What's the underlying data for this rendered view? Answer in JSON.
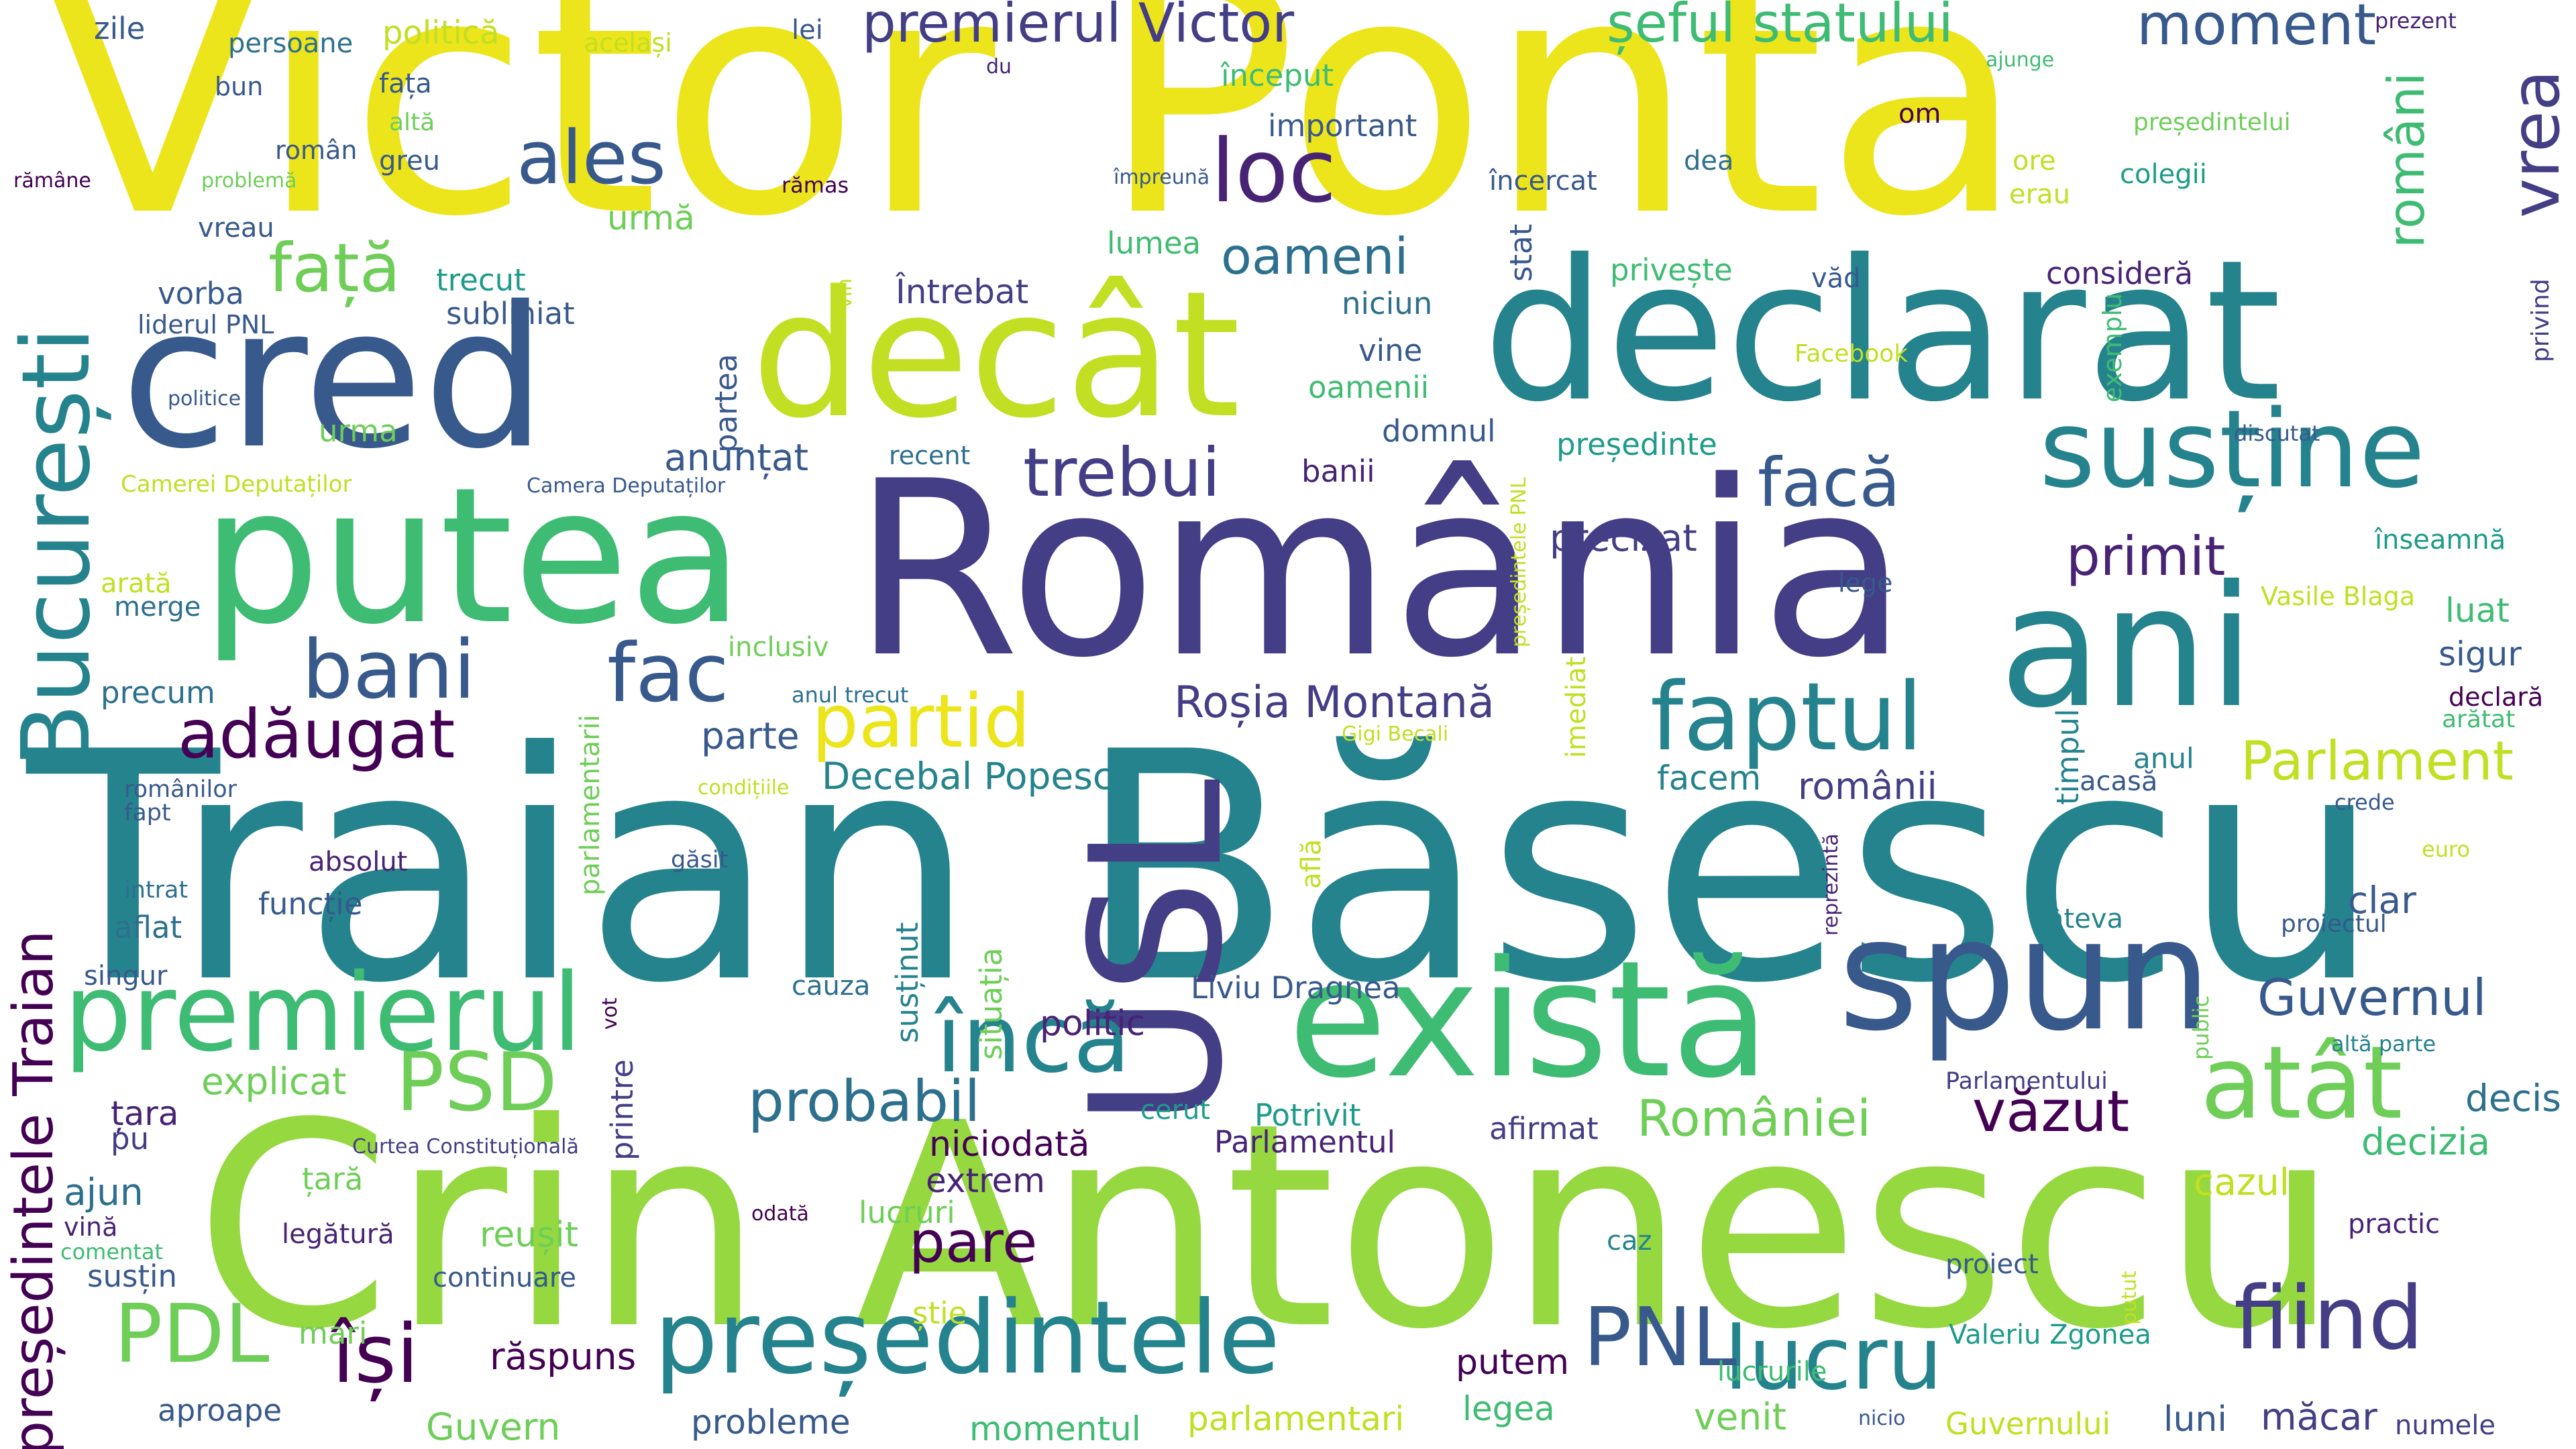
{
  "palette": {
    "yellow": "#ede51b",
    "lime": "#95d840",
    "lightgreen": "#6ece58",
    "green": "#3fbc73",
    "teal": "#1e9b8a",
    "tealblue": "#25838e",
    "blue": "#2d708e",
    "indigo": "#38598c",
    "violet": "#433e85",
    "purple": "#482374",
    "dark": "#440154",
    "chartreuse": "#c2df23"
  },
  "words": [
    {
      "id": "victor-ponta",
      "text": "Victor Ponta",
      "color": "yellow"
    },
    {
      "id": "traian-basescu",
      "text": "Traian Băsescu",
      "color": "tealblue"
    },
    {
      "id": "crin-antonescu",
      "text": "Crin Antonescu",
      "color": "lime"
    },
    {
      "id": "romania",
      "text": "România",
      "color": "violet"
    },
    {
      "id": "putea",
      "text": "putea",
      "color": "green"
    },
    {
      "id": "declarat",
      "text": "declarat",
      "color": "tealblue"
    },
    {
      "id": "cred",
      "text": "cred",
      "color": "indigo"
    },
    {
      "id": "decat",
      "text": "decât",
      "color": "chartreuse"
    },
    {
      "id": "ani",
      "text": "ani",
      "color": "tealblue"
    },
    {
      "id": "usl",
      "text": "USL",
      "color": "violet"
    },
    {
      "id": "exista",
      "text": "există",
      "color": "green"
    },
    {
      "id": "spun",
      "text": "spun",
      "color": "indigo"
    },
    {
      "id": "presedintele",
      "text": "președintele",
      "color": "tealblue"
    },
    {
      "id": "sustine",
      "text": "susține",
      "color": "tealblue"
    },
    {
      "id": "premierul",
      "text": "premierul",
      "color": "green"
    },
    {
      "id": "bucuresti",
      "text": "București",
      "color": "tealblue"
    },
    {
      "id": "presedintele-traian",
      "text": "președintele Traian",
      "color": "dark"
    },
    {
      "id": "faptul",
      "text": "faptul",
      "color": "tealblue"
    },
    {
      "id": "fiind",
      "text": "fiind",
      "color": "violet"
    },
    {
      "id": "lucru",
      "text": "lucru",
      "color": "tealblue"
    },
    {
      "id": "atat",
      "text": "atât",
      "color": "lightgreen"
    },
    {
      "id": "inca",
      "text": "încă",
      "color": "tealblue"
    },
    {
      "id": "psd",
      "text": "PSD",
      "color": "lightgreen"
    },
    {
      "id": "pdl",
      "text": "PDL",
      "color": "lightgreen"
    },
    {
      "id": "pnl",
      "text": "PNL",
      "color": "indigo"
    },
    {
      "id": "isi",
      "text": "își",
      "color": "dark"
    },
    {
      "id": "partid",
      "text": "partid",
      "color": "yellow"
    },
    {
      "id": "bani",
      "text": "bani",
      "color": "indigo"
    },
    {
      "id": "fac",
      "text": "fac",
      "color": "indigo"
    },
    {
      "id": "face",
      "text": "facă",
      "color": "indigo"
    },
    {
      "id": "trebui",
      "text": "trebui",
      "color": "violet"
    },
    {
      "id": "loc",
      "text": "loc",
      "color": "purple"
    },
    {
      "id": "ales",
      "text": "ales",
      "color": "indigo"
    },
    {
      "id": "fata",
      "text": "față",
      "color": "lightgreen"
    },
    {
      "id": "adaugat",
      "text": "adăugat",
      "color": "dark"
    },
    {
      "id": "vrea",
      "text": "vrea",
      "color": "violet"
    },
    {
      "id": "premierul-victor",
      "text": "premierul Victor",
      "color": "violet"
    },
    {
      "id": "seful-statului",
      "text": "șeful statului",
      "color": "green"
    },
    {
      "id": "moment",
      "text": "moment",
      "color": "indigo"
    },
    {
      "id": "oameni",
      "text": "oameni",
      "color": "blue"
    },
    {
      "id": "primit",
      "text": "primit",
      "color": "purple"
    },
    {
      "id": "parlament",
      "text": "Parlament",
      "color": "chartreuse"
    },
    {
      "id": "guvernul",
      "text": "Guvernul",
      "color": "indigo"
    },
    {
      "id": "rosia-montana",
      "text": "Roșia Montană",
      "color": "violet"
    },
    {
      "id": "probabil",
      "text": "probabil",
      "color": "blue"
    },
    {
      "id": "pare",
      "text": "pare",
      "color": "dark"
    },
    {
      "id": "vazut",
      "text": "văzut",
      "color": "dark"
    },
    {
      "id": "romaniei",
      "text": "României",
      "color": "lightgreen"
    },
    {
      "id": "romani-v",
      "text": "români",
      "color": "green"
    },
    {
      "id": "decebal-popescu",
      "text": "Decebal Popescu",
      "color": "tealblue"
    },
    {
      "id": "raspuns",
      "text": "răspuns",
      "color": "dark"
    },
    {
      "id": "precizat",
      "text": "precizat",
      "color": "violet"
    },
    {
      "id": "explicat",
      "text": "explicat",
      "color": "lightgreen"
    },
    {
      "id": "romanii",
      "text": "românii",
      "color": "violet"
    },
    {
      "id": "sigur",
      "text": "sigur",
      "color": "indigo"
    },
    {
      "id": "luat",
      "text": "luat",
      "color": "green"
    },
    {
      "id": "cazul",
      "text": "cazul",
      "color": "chartreuse"
    },
    {
      "id": "decizia",
      "text": "decizia",
      "color": "green"
    },
    {
      "id": "decis",
      "text": "decis",
      "color": "blue"
    },
    {
      "id": "clar",
      "text": "clar",
      "color": "indigo"
    },
    {
      "id": "anuntat",
      "text": "anunțat",
      "color": "indigo"
    },
    {
      "id": "parte",
      "text": "parte",
      "color": "indigo"
    },
    {
      "id": "facem",
      "text": "facem",
      "color": "tealblue"
    },
    {
      "id": "anul",
      "text": "anul",
      "color": "tealblue"
    },
    {
      "id": "politic",
      "text": "politic",
      "color": "purple"
    },
    {
      "id": "niciodata",
      "text": "niciodată",
      "color": "dark"
    },
    {
      "id": "extrem",
      "text": "extrem",
      "color": "purple"
    },
    {
      "id": "lucruri",
      "text": "lucruri",
      "color": "lightgreen"
    },
    {
      "id": "reusit",
      "text": "reușit",
      "color": "lightgreen"
    },
    {
      "id": "putem",
      "text": "putem",
      "color": "dark"
    },
    {
      "id": "legea",
      "text": "legea",
      "color": "green"
    },
    {
      "id": "venit",
      "text": "venit",
      "color": "lightgreen"
    },
    {
      "id": "luni",
      "text": "luni",
      "color": "indigo"
    },
    {
      "id": "macar",
      "text": "măcar",
      "color": "violet"
    },
    {
      "id": "probleme",
      "text": "probleme",
      "color": "indigo"
    },
    {
      "id": "momentul",
      "text": "momentul",
      "color": "green"
    },
    {
      "id": "parlamentari",
      "text": "parlamentari",
      "color": "chartreuse"
    },
    {
      "id": "guvern",
      "text": "Guvern",
      "color": "lightgreen"
    },
    {
      "id": "guvernului",
      "text": "Guvernului",
      "color": "chartreuse"
    },
    {
      "id": "mari",
      "text": "mari",
      "color": "lightgreen"
    },
    {
      "id": "aproape",
      "text": "aproape",
      "color": "indigo"
    },
    {
      "id": "zile",
      "text": "zile",
      "color": "indigo"
    },
    {
      "id": "persoane",
      "text": "persoane",
      "color": "blue"
    },
    {
      "id": "politica",
      "text": "politică",
      "color": "chartreuse"
    },
    {
      "id": "acelasi",
      "text": "același",
      "color": "chartreuse"
    },
    {
      "id": "lei",
      "text": "lei",
      "color": "indigo"
    },
    {
      "id": "bun",
      "text": "bun",
      "color": "indigo"
    },
    {
      "id": "roman",
      "text": "român",
      "color": "indigo"
    },
    {
      "id": "fata-small",
      "text": "fața",
      "color": "indigo"
    },
    {
      "id": "alta",
      "text": "altă",
      "color": "lightgreen"
    },
    {
      "id": "du",
      "text": "du",
      "color": "purple"
    },
    {
      "id": "inceput",
      "text": "început",
      "color": "green"
    },
    {
      "id": "important",
      "text": "important",
      "color": "indigo"
    },
    {
      "id": "om",
      "text": "om",
      "color": "dark"
    },
    {
      "id": "prezent",
      "text": "prezent",
      "color": "purple"
    },
    {
      "id": "ajunge",
      "text": "ajunge",
      "color": "green"
    },
    {
      "id": "presedintelui",
      "text": "președintelui",
      "color": "lightgreen"
    },
    {
      "id": "ramane",
      "text": "rămâne",
      "color": "dark"
    },
    {
      "id": "problema",
      "text": "problemă",
      "color": "lightgreen"
    },
    {
      "id": "greu",
      "text": "greu",
      "color": "indigo"
    },
    {
      "id": "impreuna",
      "text": "împreună",
      "color": "indigo"
    },
    {
      "id": "ramas",
      "text": "rămas",
      "color": "dark"
    },
    {
      "id": "incercat",
      "text": "încercat",
      "color": "indigo"
    },
    {
      "id": "dea",
      "text": "dea",
      "color": "blue"
    },
    {
      "id": "ore",
      "text": "ore",
      "color": "chartreuse"
    },
    {
      "id": "erau",
      "text": "erau",
      "color": "chartreuse"
    },
    {
      "id": "colegii",
      "text": "colegii",
      "color": "teal"
    },
    {
      "id": "urma-big",
      "text": "urmă",
      "color": "lightgreen"
    },
    {
      "id": "vreau",
      "text": "vreau",
      "color": "indigo"
    },
    {
      "id": "lumea",
      "text": "lumea",
      "color": "green"
    },
    {
      "id": "trecut",
      "text": "trecut",
      "color": "teal"
    },
    {
      "id": "vorba",
      "text": "vorba",
      "color": "indigo"
    },
    {
      "id": "liderul-pnl",
      "text": "liderul PNL",
      "color": "indigo"
    },
    {
      "id": "subliniat",
      "text": "subliniat",
      "color": "indigo"
    },
    {
      "id": "intrebat",
      "text": "Întrebat",
      "color": "violet"
    },
    {
      "id": "priveste",
      "text": "privește",
      "color": "green"
    },
    {
      "id": "vad",
      "text": "văd",
      "color": "indigo"
    },
    {
      "id": "considera",
      "text": "consideră",
      "color": "purple"
    },
    {
      "id": "niciun",
      "text": "niciun",
      "color": "blue"
    },
    {
      "id": "vine",
      "text": "vine",
      "color": "indigo"
    },
    {
      "id": "oamenii",
      "text": "oamenii",
      "color": "green"
    },
    {
      "id": "facebook",
      "text": "Facebook",
      "color": "chartreuse"
    },
    {
      "id": "domnul",
      "text": "domnul",
      "color": "indigo"
    },
    {
      "id": "presedinte",
      "text": "președinte",
      "color": "teal"
    },
    {
      "id": "politice",
      "text": "politice",
      "color": "indigo"
    },
    {
      "id": "urma",
      "text": "urma",
      "color": "lightgreen"
    },
    {
      "id": "camerei-deputatilor",
      "text": "Camerei Deputaților",
      "color": "chartreuse"
    },
    {
      "id": "camera-deputatilor",
      "text": "Camera Deputaților",
      "color": "indigo"
    },
    {
      "id": "recent",
      "text": "recent",
      "color": "blue"
    },
    {
      "id": "banii",
      "text": "banii",
      "color": "purple"
    },
    {
      "id": "discutat",
      "text": "discutat",
      "color": "indigo"
    },
    {
      "id": "inseamna",
      "text": "înseamnă",
      "color": "teal"
    },
    {
      "id": "arata",
      "text": "arată",
      "color": "chartreuse"
    },
    {
      "id": "merge",
      "text": "merge",
      "color": "blue"
    },
    {
      "id": "lege",
      "text": "lege",
      "color": "indigo"
    },
    {
      "id": "vasile-blaga",
      "text": "Vasile Blaga",
      "color": "chartreuse"
    },
    {
      "id": "inclusiv",
      "text": "inclusiv",
      "color": "lightgreen"
    },
    {
      "id": "precum",
      "text": "precum",
      "color": "blue"
    },
    {
      "id": "anul-trecut",
      "text": "anul trecut",
      "color": "blue"
    },
    {
      "id": "gigi-becali",
      "text": "Gigi Becali",
      "color": "chartreuse"
    },
    {
      "id": "declara",
      "text": "declară",
      "color": "dark"
    },
    {
      "id": "aratat",
      "text": "arătat",
      "color": "green"
    },
    {
      "id": "romanilor",
      "text": "românilor",
      "color": "indigo"
    },
    {
      "id": "fapt",
      "text": "fapt",
      "color": "indigo"
    },
    {
      "id": "conditiile",
      "text": "condițiile",
      "color": "chartreuse"
    },
    {
      "id": "acasa",
      "text": "acasă",
      "color": "indigo"
    },
    {
      "id": "crede",
      "text": "crede",
      "color": "indigo"
    },
    {
      "id": "intrat",
      "text": "intrat",
      "color": "blue"
    },
    {
      "id": "absolut",
      "text": "absolut",
      "color": "purple"
    },
    {
      "id": "gasit",
      "text": "găsit",
      "color": "indigo"
    },
    {
      "id": "euro",
      "text": "euro",
      "color": "chartreuse"
    },
    {
      "id": "aflat",
      "text": "aflat",
      "color": "blue"
    },
    {
      "id": "functie",
      "text": "funcție",
      "color": "indigo"
    },
    {
      "id": "cateva",
      "text": "câteva",
      "color": "tealblue"
    },
    {
      "id": "proiectul",
      "text": "proiectul",
      "color": "indigo"
    },
    {
      "id": "singur",
      "text": "singur",
      "color": "indigo"
    },
    {
      "id": "cauza",
      "text": "cauza",
      "color": "blue"
    },
    {
      "id": "liviu-dragnea",
      "text": "Liviu Dragnea",
      "color": "indigo"
    },
    {
      "id": "alta-parte",
      "text": "altă parte",
      "color": "tealblue"
    },
    {
      "id": "tara-big",
      "text": "țara",
      "color": "purple"
    },
    {
      "id": "pu",
      "text": "pu",
      "color": "violet"
    },
    {
      "id": "ajun",
      "text": "ajun",
      "color": "blue"
    },
    {
      "id": "tara",
      "text": "țară",
      "color": "lightgreen"
    },
    {
      "id": "vina",
      "text": "vină",
      "color": "purple"
    },
    {
      "id": "comentat",
      "text": "comentat",
      "color": "green"
    },
    {
      "id": "sustin",
      "text": "susțin",
      "color": "indigo"
    },
    {
      "id": "legatura",
      "text": "legătură",
      "color": "purple"
    },
    {
      "id": "continuare",
      "text": "continuare",
      "color": "indigo"
    },
    {
      "id": "cerut",
      "text": "cerut",
      "color": "teal"
    },
    {
      "id": "potrivit",
      "text": "Potrivit",
      "color": "teal"
    },
    {
      "id": "parlamentul",
      "text": "Parlamentul",
      "color": "purple"
    },
    {
      "id": "afirmat",
      "text": "afirmat",
      "color": "violet"
    },
    {
      "id": "curtea-constitutionala",
      "text": "Curtea Constituțională",
      "color": "violet"
    },
    {
      "id": "parlamentului",
      "text": "Parlamentului",
      "color": "violet"
    },
    {
      "id": "practic",
      "text": "practic",
      "color": "purple"
    },
    {
      "id": "proiect",
      "text": "proiect",
      "color": "indigo"
    },
    {
      "id": "caz",
      "text": "caz",
      "color": "tealblue"
    },
    {
      "id": "odata",
      "text": "odată",
      "color": "dark"
    },
    {
      "id": "stie",
      "text": "știe",
      "color": "chartreuse"
    },
    {
      "id": "valeriu-zgonea",
      "text": "Valeriu Zgonea",
      "color": "teal"
    },
    {
      "id": "lucrurile",
      "text": "lucrurile",
      "color": "green"
    },
    {
      "id": "nicio",
      "text": "nicio",
      "color": "indigo"
    },
    {
      "id": "numele",
      "text": "numele",
      "color": "violet"
    },
    {
      "id": "stat",
      "text": "stat",
      "color": "indigo"
    },
    {
      "id": "partea",
      "text": "partea",
      "color": "indigo"
    },
    {
      "id": "vin",
      "text": "vin",
      "color": "chartreuse"
    },
    {
      "id": "exemplu",
      "text": "exemplu",
      "color": "green"
    },
    {
      "id": "privind",
      "text": "privind",
      "color": "violet"
    },
    {
      "id": "presedintele-pnl",
      "text": "președintele PNL",
      "color": "chartreuse"
    },
    {
      "id": "parlamentarii",
      "text": "parlamentarii",
      "color": "lightgreen"
    },
    {
      "id": "imediat",
      "text": "imediat",
      "color": "chartreuse"
    },
    {
      "id": "timpul",
      "text": "timpul",
      "color": "tealblue"
    },
    {
      "id": "afla",
      "text": "află",
      "color": "chartreuse"
    },
    {
      "id": "sustinut",
      "text": "susținut",
      "color": "tealblue"
    },
    {
      "id": "situatia",
      "text": "situația",
      "color": "lightgreen"
    },
    {
      "id": "reprezinta",
      "text": "reprezintă",
      "color": "purple"
    },
    {
      "id": "public",
      "text": "public",
      "color": "lightgreen"
    },
    {
      "id": "vot",
      "text": "vot",
      "color": "dark"
    },
    {
      "id": "printre",
      "text": "printre",
      "color": "violet"
    },
    {
      "id": "putut",
      "text": "putut",
      "color": "chartreuse"
    }
  ]
}
